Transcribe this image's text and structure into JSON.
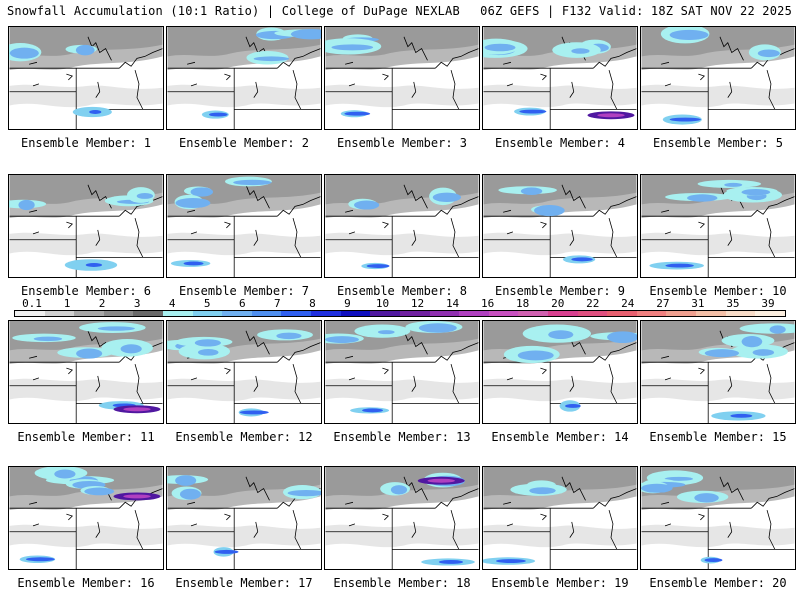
{
  "header": {
    "left_title": "Snowfall Accumulation (10:1 Ratio) | College of DuPage NEXLAB",
    "right_title": "06Z GEFS | F132 Valid: 18Z SAT NOV 22 2025"
  },
  "panels": [
    {
      "label": "Ensemble Member: 1"
    },
    {
      "label": "Ensemble Member: 2"
    },
    {
      "label": "Ensemble Member: 3"
    },
    {
      "label": "Ensemble Member: 4"
    },
    {
      "label": "Ensemble Member: 5"
    },
    {
      "label": "Ensemble Member: 6"
    },
    {
      "label": "Ensemble Member: 7"
    },
    {
      "label": "Ensemble Member: 8"
    },
    {
      "label": "Ensemble Member: 9"
    },
    {
      "label": "Ensemble Member: 10"
    },
    {
      "label": "Ensemble Member: 11"
    },
    {
      "label": "Ensemble Member: 12"
    },
    {
      "label": "Ensemble Member: 13"
    },
    {
      "label": "Ensemble Member: 14"
    },
    {
      "label": "Ensemble Member: 15"
    },
    {
      "label": "Ensemble Member: 16"
    },
    {
      "label": "Ensemble Member: 17"
    },
    {
      "label": "Ensemble Member: 18"
    },
    {
      "label": "Ensemble Member: 19"
    },
    {
      "label": "Ensemble Member: 20"
    }
  ],
  "legend": {
    "labels": [
      "0.1",
      "1",
      "2",
      "3",
      "4",
      "5",
      "6",
      "7",
      "8",
      "9",
      "10",
      "12",
      "14",
      "16",
      "18",
      "20",
      "22",
      "24",
      "27",
      "31",
      "35",
      "39"
    ],
    "colors": [
      "#f0f0f0",
      "#d0d0d0",
      "#a8a8a8",
      "#8a8a8a",
      "#6a6a6a",
      "#a8f0f0",
      "#80d0f0",
      "#70b0f0",
      "#5090f0",
      "#3060f0",
      "#2030e0",
      "#1010c0",
      "#5018a0",
      "#7020a0",
      "#9030b0",
      "#b040c0",
      "#c850c0",
      "#d060b0",
      "#d84090",
      "#e05080",
      "#e86070",
      "#f08080",
      "#f0a090",
      "#f4c0a8",
      "#f8dcc8",
      "#fcefe0"
    ]
  }
}
